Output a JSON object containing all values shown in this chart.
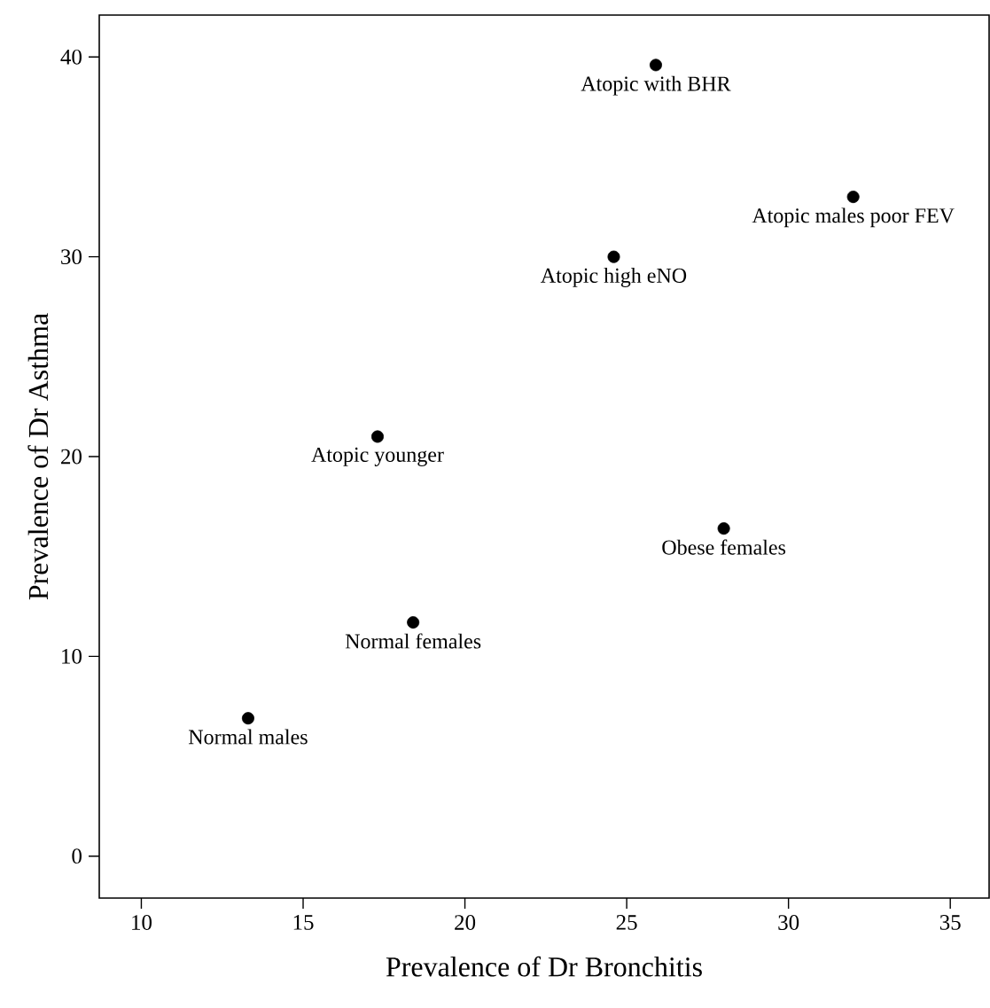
{
  "chart_data": {
    "type": "scatter",
    "xlabel": "Prevalence of Dr Bronchitis",
    "ylabel": "Prevalence of Dr Asthma",
    "x": [
      25.9,
      32.0,
      24.6,
      17.3,
      28.0,
      18.4,
      13.3
    ],
    "series": [
      {
        "color": "#000000",
        "values": [
          39.6,
          33.0,
          30.0,
          21.0,
          16.4,
          11.7,
          6.9
        ]
      }
    ],
    "marker": "circle",
    "grid": false,
    "xlim": [
      8.7,
      36.2
    ],
    "ylim": [
      -2.1,
      42.1
    ],
    "xticks": [
      10,
      15,
      20,
      25,
      30,
      35
    ],
    "yticks": [
      0,
      10,
      20,
      30,
      40
    ],
    "annotations": [
      {
        "text": "Atopic with BHR",
        "x": 25.9,
        "y": 39.6
      },
      {
        "text": "Atopic males poor FEV",
        "x": 32.0,
        "y": 33.0
      },
      {
        "text": "Atopic high eNO",
        "x": 24.6,
        "y": 30.0
      },
      {
        "text": "Atopic younger",
        "x": 17.3,
        "y": 21.0
      },
      {
        "text": "Obese females",
        "x": 28.0,
        "y": 16.4
      },
      {
        "text": "Normal females",
        "x": 18.4,
        "y": 11.7
      },
      {
        "text": "Normal males",
        "x": 13.3,
        "y": 6.9
      }
    ]
  }
}
